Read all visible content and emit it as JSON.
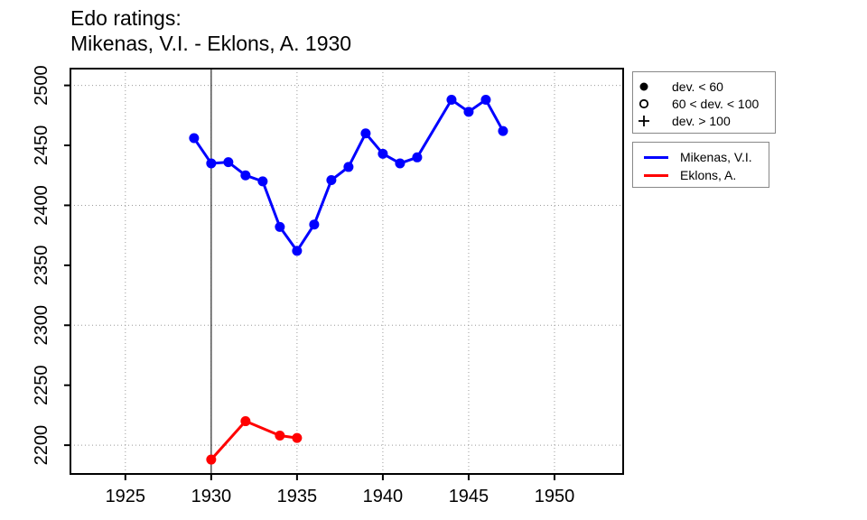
{
  "title": {
    "line1": "Edo ratings:",
    "line2": "Mikenas, V.I. - Eklons, A. 1930"
  },
  "legend_dev": {
    "items": [
      {
        "symbol": "filled-circle-icon",
        "label": "dev. < 60"
      },
      {
        "symbol": "open-circle-icon",
        "label": "60 < dev. < 100"
      },
      {
        "symbol": "plus-icon",
        "label": "dev. > 100"
      }
    ]
  },
  "legend_series": {
    "items": [
      {
        "color": "#0000ff",
        "label": "Mikenas, V.I."
      },
      {
        "color": "#ff0000",
        "label": "Eklons, A."
      }
    ]
  },
  "chart_data": {
    "type": "line",
    "title": "Edo ratings: Mikenas, V.I. - Eklons, A. 1930",
    "xlabel": "",
    "ylabel": "",
    "xlim": [
      1921.8,
      1954.0
    ],
    "ylim": [
      2176,
      2514
    ],
    "x_ticks": [
      1925,
      1930,
      1935,
      1940,
      1945,
      1950
    ],
    "y_ticks": [
      2200,
      2250,
      2300,
      2350,
      2400,
      2450,
      2500
    ],
    "x_gridlines": [
      1925,
      1930,
      1935,
      1940,
      1945,
      1950
    ],
    "y_gridlines": [
      2200,
      2300,
      2400,
      2500
    ],
    "grid_on": true,
    "grid_color": "#9a9a9a",
    "vline_x": 1930,
    "vline_color": "#3a3a3a",
    "legend_position": "right-outside",
    "series": [
      {
        "name": "Mikenas, V.I.",
        "color": "#0000ff",
        "marker": "filled-circle",
        "points": [
          [
            1929,
            2456
          ],
          [
            1930,
            2435
          ],
          [
            1931,
            2436
          ],
          [
            1932,
            2425
          ],
          [
            1933,
            2420
          ],
          [
            1934,
            2382
          ],
          [
            1935,
            2362
          ],
          [
            1936,
            2384
          ],
          [
            1937,
            2421
          ],
          [
            1938,
            2432
          ],
          [
            1939,
            2460
          ],
          [
            1940,
            2443
          ],
          [
            1941,
            2435
          ],
          [
            1942,
            2440
          ],
          [
            1944,
            2488
          ],
          [
            1945,
            2478
          ],
          [
            1946,
            2488
          ],
          [
            1947,
            2462
          ]
        ]
      },
      {
        "name": "Eklons, A.",
        "color": "#ff0000",
        "marker": "filled-circle",
        "points": [
          [
            1930,
            2188
          ],
          [
            1932,
            2220
          ],
          [
            1934,
            2208
          ],
          [
            1935,
            2206
          ]
        ]
      }
    ]
  }
}
